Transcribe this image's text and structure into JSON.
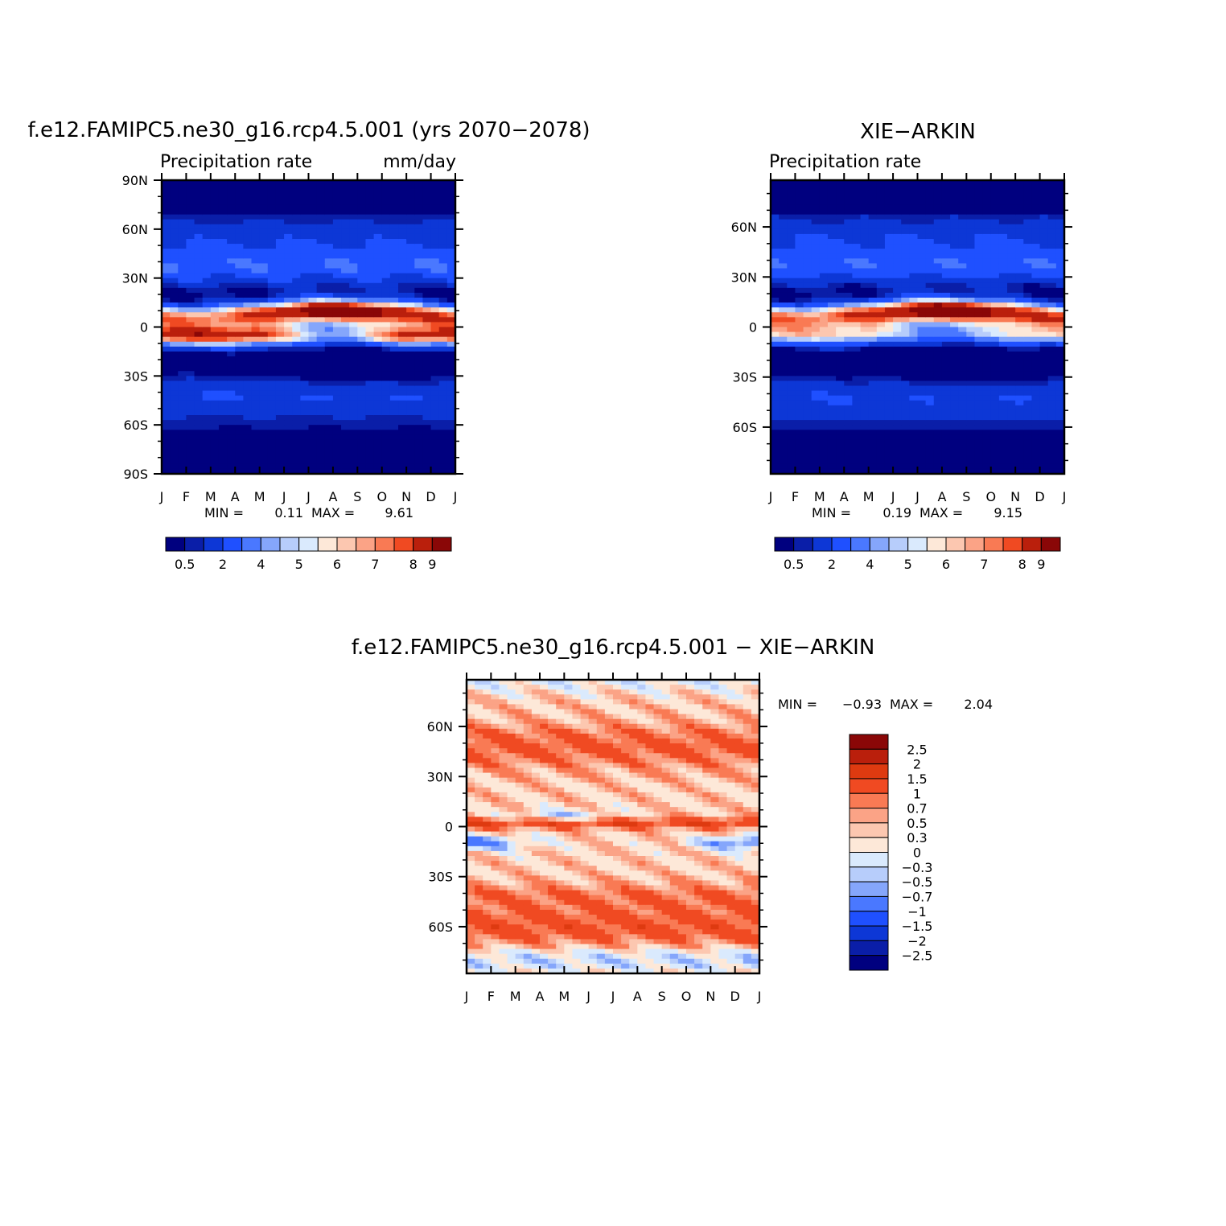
{
  "chart_data": [
    {
      "type": "heatmap",
      "title": "f.e12.FAMIPC5.ne30_g16.rcp4.5.001 (yrs 2070-2078)",
      "subtitle_left": "Precipitation rate",
      "subtitle_right": "mm/day",
      "x_tick_labels": [
        "J",
        "F",
        "M",
        "A",
        "M",
        "J",
        "J",
        "A",
        "S",
        "O",
        "N",
        "D",
        "J"
      ],
      "y_tick_labels": [
        "90N",
        "60N",
        "30N",
        "0",
        "30S",
        "60S",
        "90S"
      ],
      "y_tick_values": [
        90,
        60,
        30,
        0,
        -30,
        -60,
        -90
      ],
      "ylim": [
        -90,
        90
      ],
      "stats": {
        "min_label": "MIN =",
        "min": "0.11",
        "max_label": "MAX =",
        "max": "9.61"
      },
      "contour_levels": [
        0.5,
        1,
        2,
        3,
        4,
        4.5,
        5,
        5.5,
        6,
        6.5,
        7,
        7.5,
        8,
        9
      ],
      "colorbar_labels": [
        "0.5",
        "2",
        "4",
        "5",
        "6",
        "7",
        "8",
        "9"
      ],
      "colorbar_label_positions": [
        0,
        2,
        4,
        6,
        8,
        10,
        12,
        13
      ],
      "features": {
        "itcz_peak": 9.61,
        "itcz_peak_month": 7.5,
        "itcz_lat_summer": 8,
        "itcz_lat_winter": -5,
        "south_band_peak": 8.5
      }
    },
    {
      "type": "heatmap",
      "title": "XIE-ARKIN",
      "subtitle_left": "Precipitation rate",
      "subtitle_right": "",
      "x_tick_labels": [
        "J",
        "F",
        "M",
        "A",
        "M",
        "J",
        "J",
        "A",
        "S",
        "O",
        "N",
        "D",
        "J"
      ],
      "y_tick_labels": [
        "60N",
        "30N",
        "0",
        "30S",
        "60S"
      ],
      "y_tick_values": [
        60,
        30,
        0,
        -30,
        -60
      ],
      "ylim": [
        -88,
        88
      ],
      "stats": {
        "min_label": "MIN =",
        "min": "0.19",
        "max_label": "MAX =",
        "max": "9.15"
      },
      "contour_levels": [
        0.5,
        1,
        2,
        3,
        4,
        4.5,
        5,
        5.5,
        6,
        6.5,
        7,
        7.5,
        8,
        9
      ],
      "colorbar_labels": [
        "0.5",
        "2",
        "4",
        "5",
        "6",
        "7",
        "8",
        "9"
      ],
      "colorbar_label_positions": [
        0,
        2,
        4,
        6,
        8,
        10,
        12,
        13
      ],
      "features": {
        "itcz_peak": 9.15,
        "itcz_peak_month": 7.5,
        "itcz_lat_summer": 8,
        "itcz_lat_winter": -4,
        "south_band_peak": 6.5
      }
    },
    {
      "type": "heatmap",
      "title": "f.e12.FAMIPC5.ne30_g16.rcp4.5.001 - XIE-ARKIN",
      "x_tick_labels": [
        "J",
        "F",
        "M",
        "A",
        "M",
        "J",
        "J",
        "A",
        "S",
        "O",
        "N",
        "D",
        "J"
      ],
      "y_tick_labels": [
        "60N",
        "30N",
        "0",
        "30S",
        "60S"
      ],
      "y_tick_values": [
        60,
        30,
        0,
        -30,
        -60
      ],
      "ylim": [
        -88,
        88
      ],
      "stats": {
        "min_label": "MIN =",
        "min": "-0.93",
        "max_label": "MAX =",
        "max": "2.04"
      },
      "contour_levels": [
        -2.5,
        -2,
        -1.5,
        -1,
        -0.7,
        -0.5,
        -0.3,
        0,
        0.3,
        0.5,
        0.7,
        1,
        1.5,
        2,
        2.5
      ],
      "colorbar_labels": [
        "2.5",
        "2",
        "1.5",
        "1",
        "0.7",
        "0.5",
        "0.3",
        "0",
        "-0.3",
        "-0.5",
        "-0.7",
        "-1",
        "-1.5",
        "-2",
        "-2.5"
      ]
    }
  ],
  "colors": {
    "precip_palette": [
      "#00007f",
      "#0a1ea8",
      "#0d37d6",
      "#1f50ff",
      "#4a78ff",
      "#85a6fb",
      "#b7cdfb",
      "#daeafd",
      "#fde8d8",
      "#fcc7b0",
      "#fba386",
      "#f97a54",
      "#f04a22",
      "#ba1f0c",
      "#8a0707"
    ],
    "diff_palette": [
      "#00007f",
      "#0a1ea8",
      "#0d37d6",
      "#1f50ff",
      "#4a78ff",
      "#85a6fb",
      "#b7cdfb",
      "#daeafd",
      "#fde8d8",
      "#fcc7b0",
      "#fba386",
      "#f97a54",
      "#f04a22",
      "#de3a10",
      "#ba1f0c",
      "#8a0707"
    ]
  }
}
